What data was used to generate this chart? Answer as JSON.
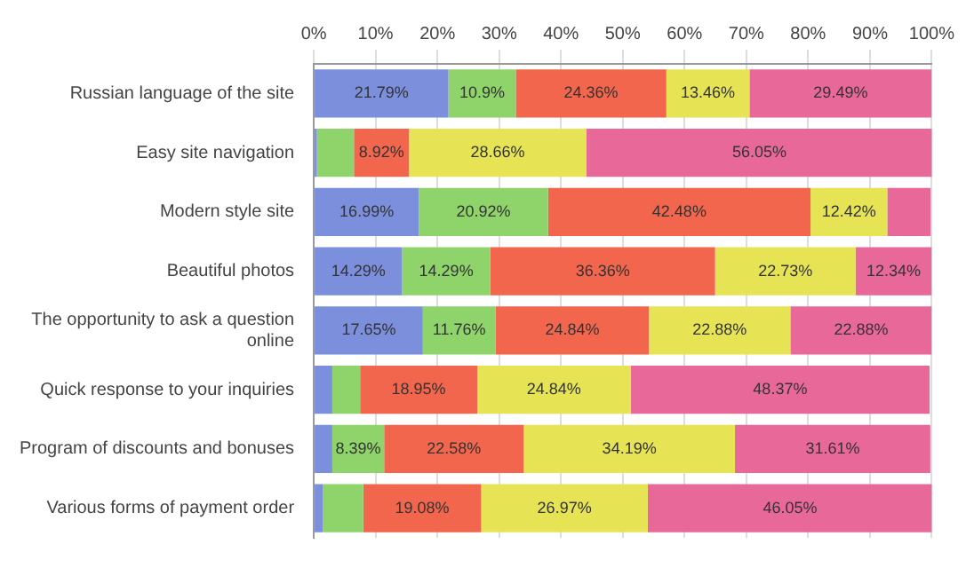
{
  "chart_data": {
    "type": "bar",
    "orientation": "horizontal",
    "stacked": true,
    "grid": "x",
    "legend": false,
    "categories": [
      "Russian language of the site",
      "Easy site navigation",
      "Modern style site",
      "Beautiful photos",
      "The opportunity to ask a question online",
      "Quick response to your inquiries",
      "Program of discounts and bonuses",
      "Various forms of payment order"
    ],
    "xlim": [
      0,
      100
    ],
    "xticks": [
      {
        "value": 0,
        "label": "0%"
      },
      {
        "value": 10,
        "label": "10%"
      },
      {
        "value": 20,
        "label": "20%"
      },
      {
        "value": 30,
        "label": "30%"
      },
      {
        "value": 40,
        "label": "40%"
      },
      {
        "value": 50,
        "label": "50%"
      },
      {
        "value": 60,
        "label": "60%"
      },
      {
        "value": 70,
        "label": "70%"
      },
      {
        "value": 80,
        "label": "80%"
      },
      {
        "value": 90,
        "label": "90%"
      },
      {
        "value": 100,
        "label": "100%"
      }
    ],
    "series": [
      {
        "color": "#7b8fdc",
        "values": [
          21.79,
          0.5,
          16.99,
          14.29,
          17.65,
          3,
          3,
          1.5
        ],
        "value_labels": [
          "21.79%",
          null,
          "16.99%",
          "14.29%",
          "17.65%",
          null,
          null,
          null
        ]
      },
      {
        "color": "#8fd46a",
        "values": [
          10.9,
          6,
          20.92,
          14.29,
          11.76,
          4.5,
          8.39,
          6.5
        ],
        "value_labels": [
          "10.9%",
          null,
          "20.92%",
          "14.29%",
          "11.76%",
          null,
          "8.39%",
          null
        ]
      },
      {
        "color": "#f2664e",
        "values": [
          24.36,
          8.92,
          42.48,
          36.36,
          24.84,
          18.95,
          22.58,
          19.08
        ],
        "value_labels": [
          "24.36%",
          "8.92%",
          "42.48%",
          "36.36%",
          "24.84%",
          "18.95%",
          "22.58%",
          "19.08%"
        ]
      },
      {
        "color": "#e6e455",
        "values": [
          13.46,
          28.66,
          12.42,
          22.73,
          22.88,
          24.84,
          34.19,
          26.97
        ],
        "value_labels": [
          "13.46%",
          "28.66%",
          "12.42%",
          "22.73%",
          "22.88%",
          "24.84%",
          "34.19%",
          "26.97%"
        ]
      },
      {
        "color": "#e8689a",
        "values": [
          29.49,
          56.05,
          7,
          12.34,
          22.88,
          48.37,
          31.61,
          46.05
        ],
        "value_labels": [
          "29.49%",
          "56.05%",
          null,
          "12.34%",
          "22.88%",
          "48.37%",
          "31.61%",
          "46.05%"
        ]
      }
    ]
  }
}
